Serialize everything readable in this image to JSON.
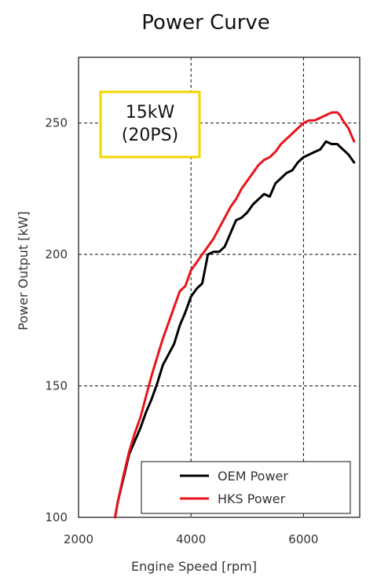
{
  "chart_data": {
    "type": "line",
    "title": "Power Curve",
    "xlabel": "Engine Speed [rpm]",
    "ylabel": "Power Output [kW]",
    "xlim": [
      2000,
      7000
    ],
    "ylim": [
      100,
      275
    ],
    "xticks": [
      2000,
      4000,
      6000
    ],
    "yticks": [
      100,
      150,
      200,
      250
    ],
    "grid": true,
    "legend_position": "bottom-right",
    "annotation": {
      "lines": [
        "15kW",
        "(20PS)"
      ],
      "border_color": "#f2d600"
    },
    "series": [
      {
        "name": "OEM Power",
        "color": "#000000",
        "x": [
          2650,
          2700,
          2800,
          2900,
          3000,
          3100,
          3200,
          3300,
          3400,
          3500,
          3600,
          3700,
          3800,
          3900,
          4000,
          4100,
          4200,
          4300,
          4400,
          4500,
          4600,
          4700,
          4800,
          4900,
          5000,
          5100,
          5200,
          5300,
          5400,
          5500,
          5600,
          5700,
          5800,
          5900,
          6000,
          6100,
          6200,
          6300,
          6400,
          6500,
          6600,
          6650,
          6700,
          6800,
          6900
        ],
        "values": [
          100,
          106,
          115,
          124,
          129,
          134,
          140,
          145,
          151,
          158,
          162,
          166,
          173,
          178,
          184,
          187,
          189,
          200,
          201,
          201,
          203,
          208,
          213,
          214,
          216,
          219,
          221,
          223,
          222,
          227,
          229,
          231,
          232,
          235,
          237,
          238,
          239,
          240,
          243,
          242,
          242,
          241,
          240,
          238,
          235
        ]
      },
      {
        "name": "HKS Power",
        "color": "#e8141b",
        "x": [
          2650,
          2700,
          2800,
          2900,
          3000,
          3100,
          3200,
          3300,
          3400,
          3500,
          3600,
          3700,
          3800,
          3900,
          4000,
          4100,
          4200,
          4300,
          4400,
          4500,
          4600,
          4700,
          4800,
          4900,
          5000,
          5100,
          5200,
          5300,
          5400,
          5500,
          5600,
          5700,
          5800,
          5900,
          6000,
          6100,
          6200,
          6300,
          6400,
          6500,
          6600,
          6650,
          6700,
          6800,
          6900
        ],
        "values": [
          100,
          106,
          116,
          125,
          132,
          138,
          146,
          154,
          161,
          168,
          174,
          180,
          186,
          188,
          194,
          197,
          200,
          203,
          206,
          210,
          214,
          218,
          221,
          225,
          228,
          231,
          234,
          236,
          237,
          239,
          242,
          244,
          246,
          248,
          250,
          251,
          251,
          252,
          253,
          254,
          254,
          253,
          251,
          248,
          243
        ]
      }
    ]
  }
}
